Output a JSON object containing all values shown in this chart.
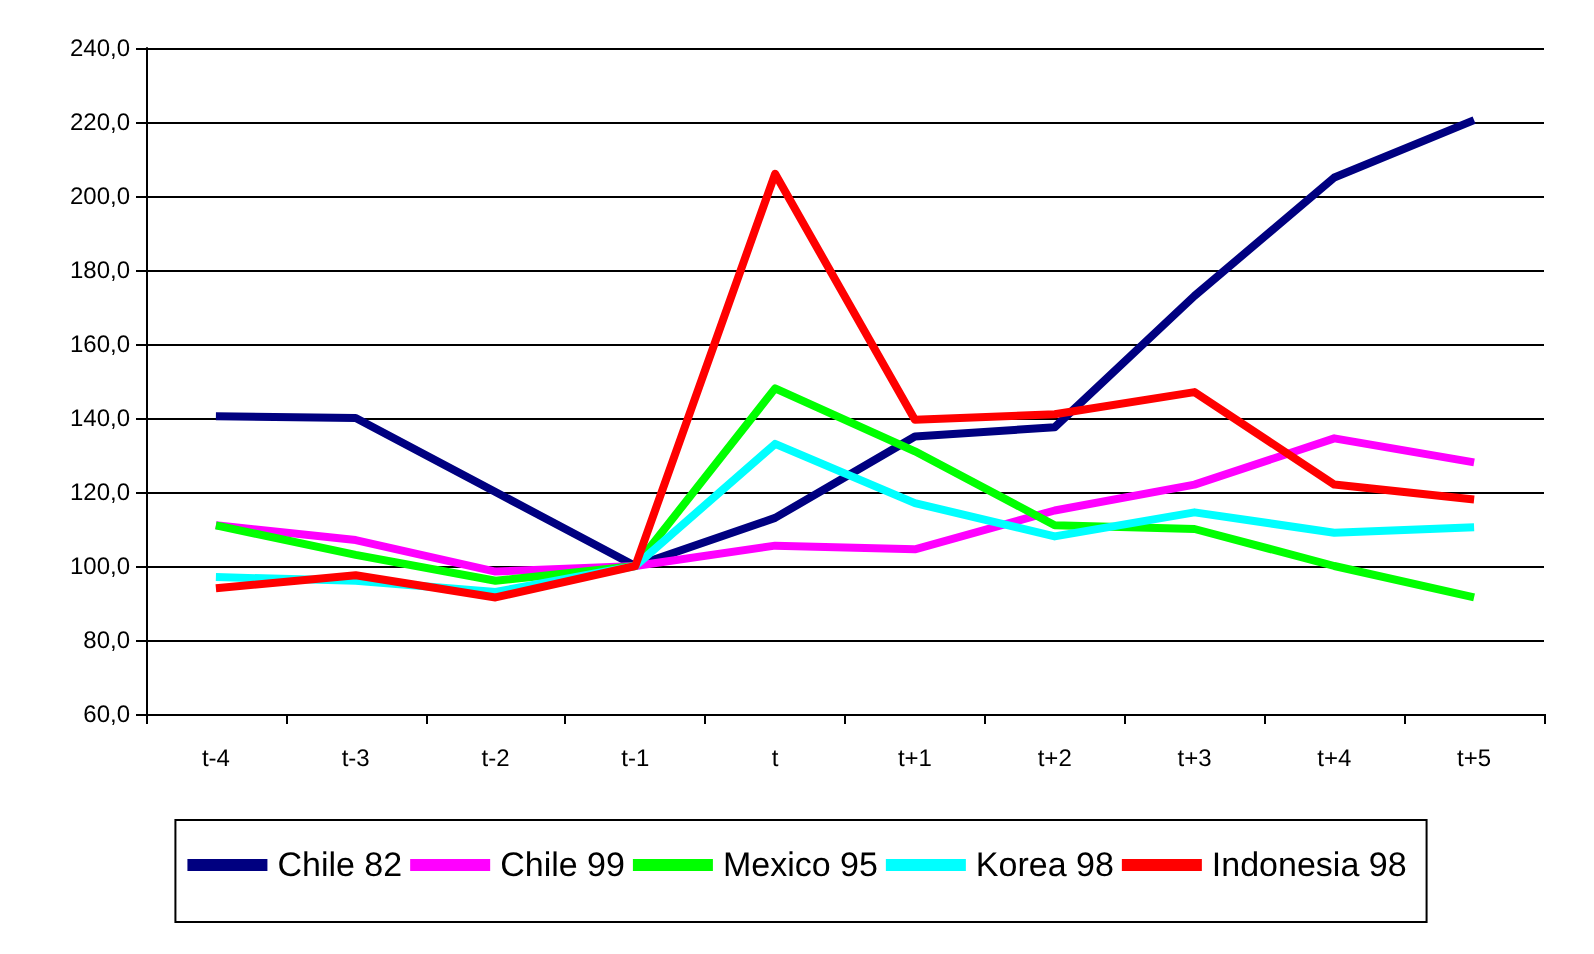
{
  "chart_data": {
    "type": "line",
    "categories": [
      "t-4",
      "t-3",
      "t-2",
      "t-1",
      "t",
      "t+1",
      "t+2",
      "t+3",
      "t+4",
      "t+5"
    ],
    "series": [
      {
        "name": "Chile 82",
        "color": "#000080",
        "values": [
          140.5,
          140,
          120,
          100,
          113,
          135,
          137.5,
          173,
          205,
          220.5
        ]
      },
      {
        "name": "Chile 99",
        "color": "#ff00ff",
        "values": [
          111,
          107,
          98.5,
          100,
          105.5,
          104.5,
          115,
          122,
          134.5,
          128
        ]
      },
      {
        "name": "Mexico 95",
        "color": "#00ff00",
        "values": [
          111,
          103,
          96,
          100,
          148,
          131,
          111,
          110,
          100,
          91.5
        ]
      },
      {
        "name": "Korea 98",
        "color": "#00ffff",
        "values": [
          97,
          96,
          93,
          100,
          133,
          117,
          108,
          114.5,
          109,
          110.5
        ]
      },
      {
        "name": "Indonesia 98",
        "color": "#ff0000",
        "values": [
          94,
          97.5,
          91.5,
          100,
          206,
          139.5,
          141,
          147,
          122,
          118
        ]
      }
    ],
    "ylim": [
      60,
      240
    ],
    "yticks": [
      {
        "value": 60,
        "label": "60,0"
      },
      {
        "value": 80,
        "label": "80,0"
      },
      {
        "value": 100,
        "label": "100,0"
      },
      {
        "value": 120,
        "label": "120,0"
      },
      {
        "value": 140,
        "label": "140,0"
      },
      {
        "value": 160,
        "label": "160,0"
      },
      {
        "value": 180,
        "label": "180,0"
      },
      {
        "value": 200,
        "label": "200,0"
      },
      {
        "value": 220,
        "label": "220,0"
      },
      {
        "value": 240,
        "label": "240,0"
      }
    ],
    "grid": "y",
    "legend": "bottom",
    "marker": "none",
    "line_style": "solid"
  }
}
